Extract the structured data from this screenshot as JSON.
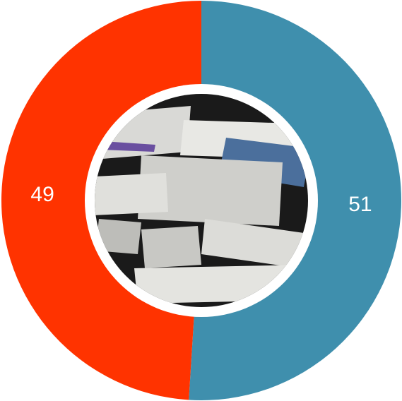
{
  "chart_data": {
    "type": "donut",
    "categories": [
      null,
      null
    ],
    "values": [
      51,
      49
    ],
    "colors": [
      "#3f8fad",
      "#ff3300"
    ]
  }
}
